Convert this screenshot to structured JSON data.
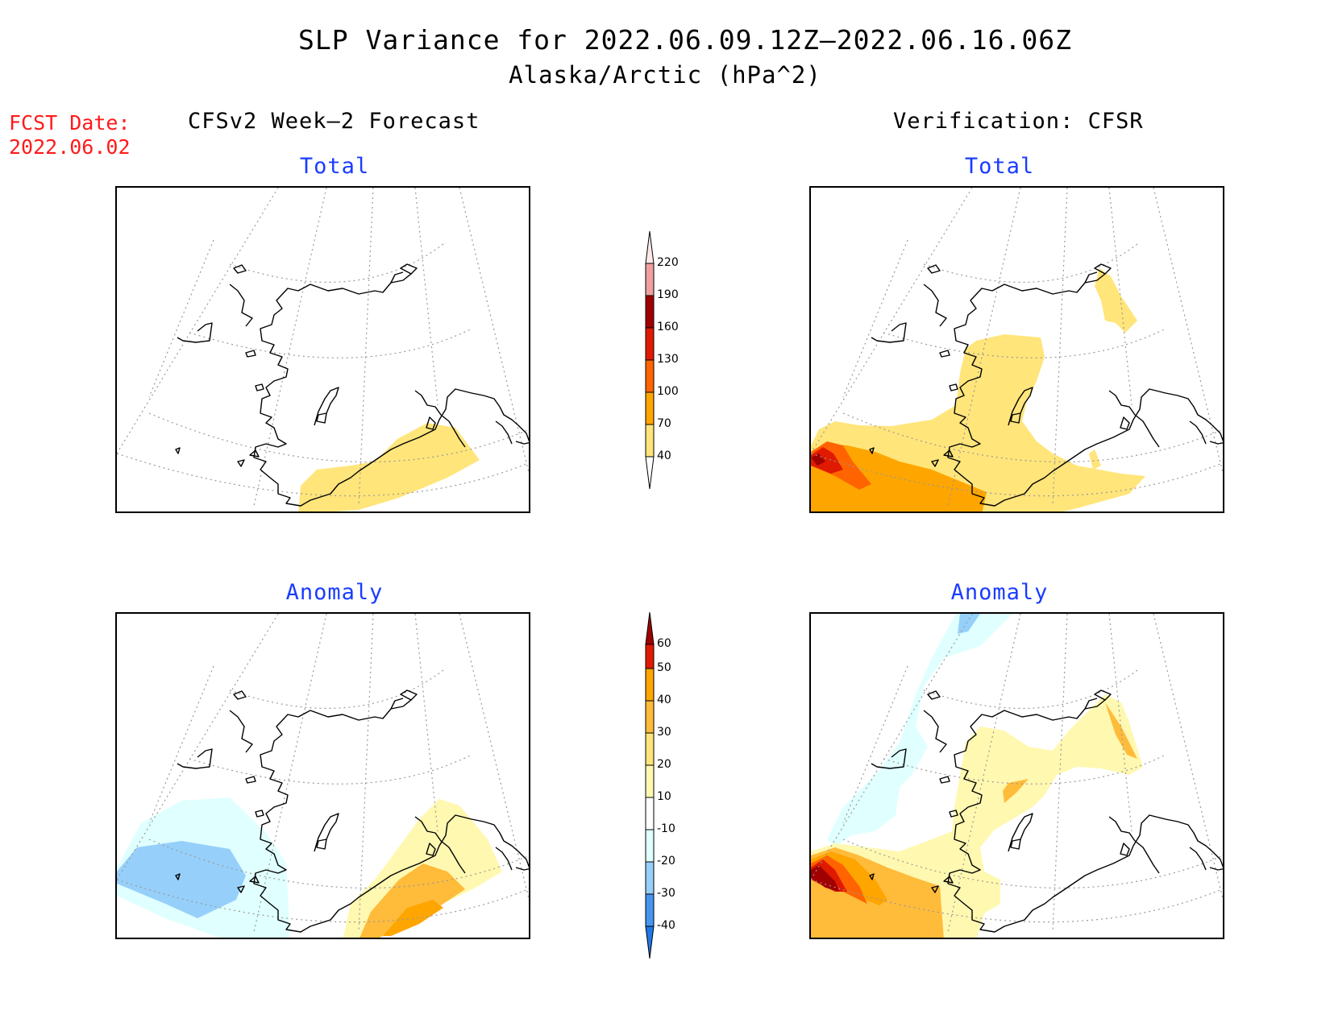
{
  "title": {
    "line1": "SLP Variance for 2022.06.09.12Z–2022.06.16.06Z",
    "line2": "Alaska/Arctic (hPa^2)"
  },
  "forecast_date": {
    "label": "FCST Date:",
    "value": "2022.06.02"
  },
  "columns": {
    "left": "CFSv2 Week–2 Forecast",
    "right": "Verification: CFSR"
  },
  "panels": {
    "forecast_total": "Total",
    "forecast_anomaly": "Anomaly",
    "verif_total": "Total",
    "verif_anomaly": "Anomaly"
  },
  "colorbars": {
    "total": {
      "levels": [
        "40",
        "70",
        "100",
        "130",
        "160",
        "190",
        "220"
      ],
      "colors": [
        "#ffe57a",
        "#ffa500",
        "#ff6400",
        "#e01a00",
        "#a00000",
        "#f0a0a0",
        "#fde8e8"
      ]
    },
    "anomaly": {
      "levels": [
        "-40",
        "-30",
        "-20",
        "-10",
        "10",
        "20",
        "30",
        "40",
        "50",
        "60"
      ],
      "colors": [
        "#1e78e6",
        "#4696f0",
        "#96d0fa",
        "#e0ffff",
        "#ffffff",
        "#fff8b0",
        "#ffe57a",
        "#ffbb3a",
        "#ffa500",
        "#ff6400",
        "#e01a00",
        "#a00000"
      ]
    }
  },
  "colors": {
    "title_blue": "#1a3cff",
    "fcst_red": "#ff1a1a"
  }
}
